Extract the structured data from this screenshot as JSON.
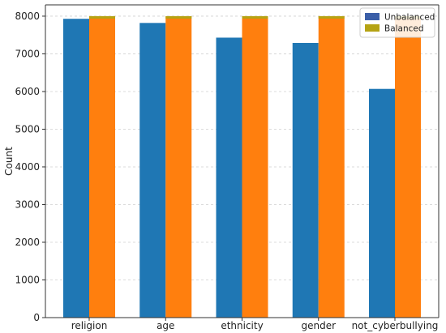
{
  "chart_data": {
    "type": "bar",
    "categories": [
      "religion",
      "age",
      "ethnicity",
      "gender",
      "not_cyberbullying"
    ],
    "series": [
      {
        "name": "Unbalanced",
        "values": [
          7930,
          7820,
          7430,
          7290,
          6070
        ],
        "color": "#1f77b4",
        "legend_color": "#3b5fa8"
      },
      {
        "name": "Balanced",
        "values": [
          8000,
          8000,
          8000,
          8000,
          8000
        ],
        "color": "#ff7f0e",
        "legend_color": "#b5a314"
      }
    ],
    "bar_cap_color": "#b5a314",
    "xlabel": "",
    "ylabel": "Count",
    "ylim": [
      0,
      8300
    ],
    "yticks": [
      0,
      1000,
      2000,
      3000,
      4000,
      5000,
      6000,
      7000,
      8000
    ],
    "grid": "horizontal dashed",
    "legend_position": "top-right"
  }
}
